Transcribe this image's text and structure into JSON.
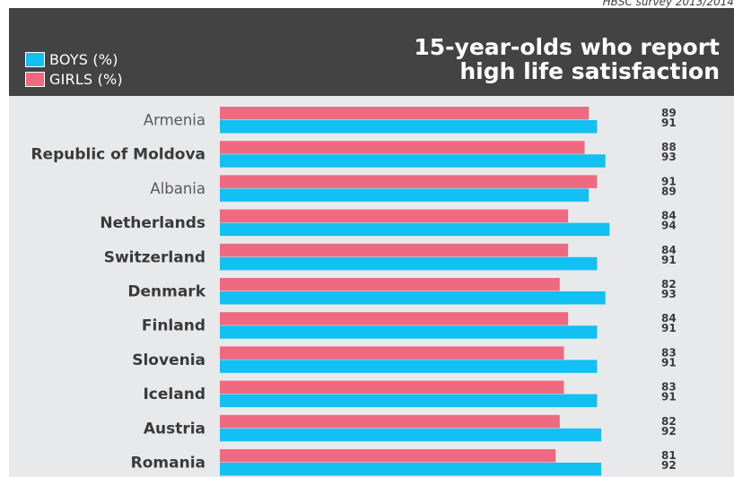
{
  "source_note": "HBSC survey 2013/2014",
  "header": {
    "title_line1": "15-year-olds who report",
    "title_line2": "high life satisfaction",
    "legend_boys": "BOYS (%)",
    "legend_girls": "GIRLS (%)"
  },
  "colors": {
    "boys": "#12c0f2",
    "girls": "#ef6a80",
    "header_bg": "#434343",
    "plot_bg": "#e8e9eb",
    "label_text": "#3a3a3a",
    "country_text_light": "#5a5a5a"
  },
  "chart_data": {
    "type": "bar",
    "orientation": "horizontal",
    "title": "15-year-olds who report high life satisfaction",
    "categories": [
      "Armenia",
      "Republic of Moldova",
      "Albania",
      "Netherlands",
      "Switzerland",
      "Denmark",
      "Finland",
      "Slovenia",
      "Iceland",
      "Austria",
      "Romania"
    ],
    "bold_categories": [
      "Republic of Moldova",
      "Netherlands",
      "Switzerland",
      "Denmark",
      "Finland",
      "Slovenia",
      "Iceland",
      "Austria",
      "Romania"
    ],
    "series": [
      {
        "name": "GIRLS (%)",
        "color": "#ef6a80",
        "values": [
          89,
          88,
          91,
          84,
          84,
          82,
          84,
          83,
          83,
          82,
          81
        ]
      },
      {
        "name": "BOYS (%)",
        "color": "#12c0f2",
        "values": [
          91,
          93,
          89,
          94,
          91,
          93,
          91,
          91,
          91,
          92,
          92
        ]
      }
    ],
    "xlim": [
      0,
      100
    ],
    "legend_position": "top-left",
    "grid": false
  }
}
